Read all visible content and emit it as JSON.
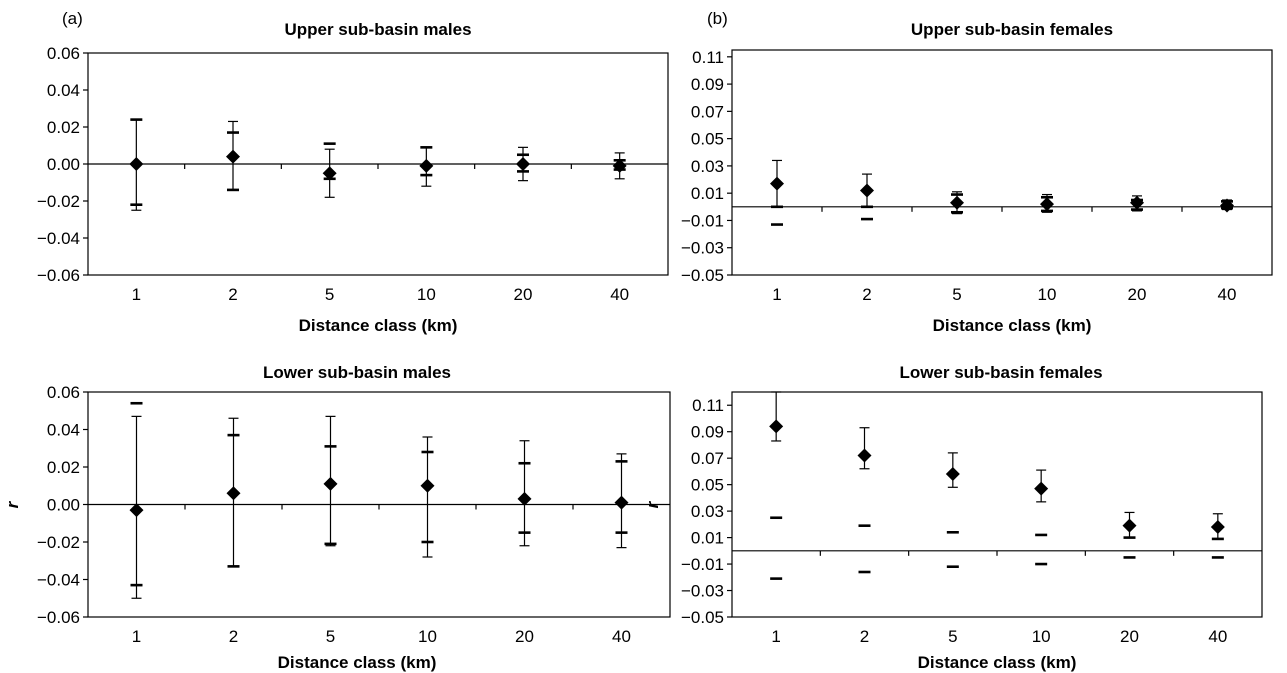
{
  "chart_data": [
    {
      "type": "scatter",
      "panel_label": "(a)",
      "title": "Upper sub-basin males",
      "xlabel": "Distance class (km)",
      "ylabel": "",
      "categories": [
        "1",
        "2",
        "5",
        "10",
        "20",
        "40"
      ],
      "ylim": [
        -0.06,
        0.06
      ],
      "yticks": [
        "0.06",
        "0.04",
        "0.02",
        "0.00",
        "−0.02",
        "−0.04",
        "−0.06"
      ],
      "series": [
        {
          "r": [
            0.0,
            0.004,
            -0.005,
            -0.001,
            0.0,
            -0.001
          ],
          "error_upper": [
            0.024,
            0.023,
            0.008,
            0.009,
            0.009,
            0.006
          ],
          "error_lower": [
            -0.025,
            -0.014,
            -0.018,
            -0.012,
            -0.009,
            -0.008
          ],
          "ci_upper": [
            0.024,
            0.017,
            0.011,
            0.009,
            0.005,
            0.002
          ],
          "ci_lower": [
            -0.022,
            -0.014,
            -0.008,
            -0.006,
            -0.004,
            -0.003
          ]
        }
      ]
    },
    {
      "type": "scatter",
      "panel_label": "(b)",
      "title": "Upper sub-basin females",
      "xlabel": "Distance class (km)",
      "ylabel": "",
      "categories": [
        "1",
        "2",
        "5",
        "10",
        "20",
        "40"
      ],
      "ylim": [
        -0.05,
        0.11
      ],
      "yticks": [
        "0.11",
        "0.09",
        "0.07",
        "0.05",
        "0.03",
        "0.01",
        "−0.01",
        "−0.03",
        "−0.05"
      ],
      "series": [
        {
          "r": [
            0.017,
            0.012,
            0.003,
            0.002,
            0.003,
            0.001
          ],
          "error_upper": [
            0.034,
            0.024,
            0.011,
            0.009,
            0.008,
            0.005
          ],
          "error_lower": [
            0.0,
            0.0,
            -0.005,
            -0.004,
            -0.003,
            -0.002
          ],
          "ci_upper": [
            0.0,
            0.0,
            0.009,
            0.007,
            0.005,
            0.004
          ],
          "ci_lower": [
            -0.013,
            -0.009,
            -0.004,
            -0.003,
            -0.002,
            -0.001
          ]
        }
      ]
    },
    {
      "type": "scatter",
      "panel_label": "",
      "title": "Lower sub-basin males",
      "xlabel": "Distance class (km)",
      "ylabel": "r",
      "categories": [
        "1",
        "2",
        "5",
        "10",
        "20",
        "40"
      ],
      "ylim": [
        -0.06,
        0.06
      ],
      "yticks": [
        "0.06",
        "0.04",
        "0.02",
        "0.00",
        "−0.02",
        "−0.04",
        "−0.06"
      ],
      "series": [
        {
          "r": [
            -0.003,
            0.006,
            0.011,
            0.01,
            0.003,
            0.001
          ],
          "error_upper": [
            0.047,
            0.046,
            0.047,
            0.036,
            0.034,
            0.027
          ],
          "error_lower": [
            -0.05,
            -0.033,
            -0.022,
            -0.028,
            -0.022,
            -0.023
          ],
          "ci_upper": [
            0.054,
            0.037,
            0.031,
            0.028,
            0.022,
            0.023
          ],
          "ci_lower": [
            -0.043,
            -0.033,
            -0.021,
            -0.02,
            -0.015,
            -0.015
          ]
        }
      ]
    },
    {
      "type": "scatter",
      "panel_label": "",
      "title": "Lower sub-basin females",
      "xlabel": "Distance class (km)",
      "ylabel": "r",
      "categories": [
        "1",
        "2",
        "5",
        "10",
        "20",
        "40"
      ],
      "ylim": [
        -0.05,
        0.12
      ],
      "yticks": [
        "0.11",
        "0.09",
        "0.07",
        "0.05",
        "0.03",
        "0.01",
        "−0.01",
        "−0.03",
        "−0.05"
      ],
      "series": [
        {
          "r": [
            0.094,
            0.072,
            0.058,
            0.047,
            0.019,
            0.018
          ],
          "error_upper": [
            0.12,
            0.093,
            0.074,
            0.061,
            0.029,
            0.028
          ],
          "error_lower": [
            0.083,
            0.062,
            0.048,
            0.037,
            0.01,
            0.009
          ],
          "ci_upper": [
            0.025,
            0.019,
            0.014,
            0.012,
            0.01,
            0.009
          ],
          "ci_lower": [
            -0.021,
            -0.016,
            -0.012,
            -0.01,
            -0.005,
            -0.005
          ]
        }
      ]
    }
  ]
}
